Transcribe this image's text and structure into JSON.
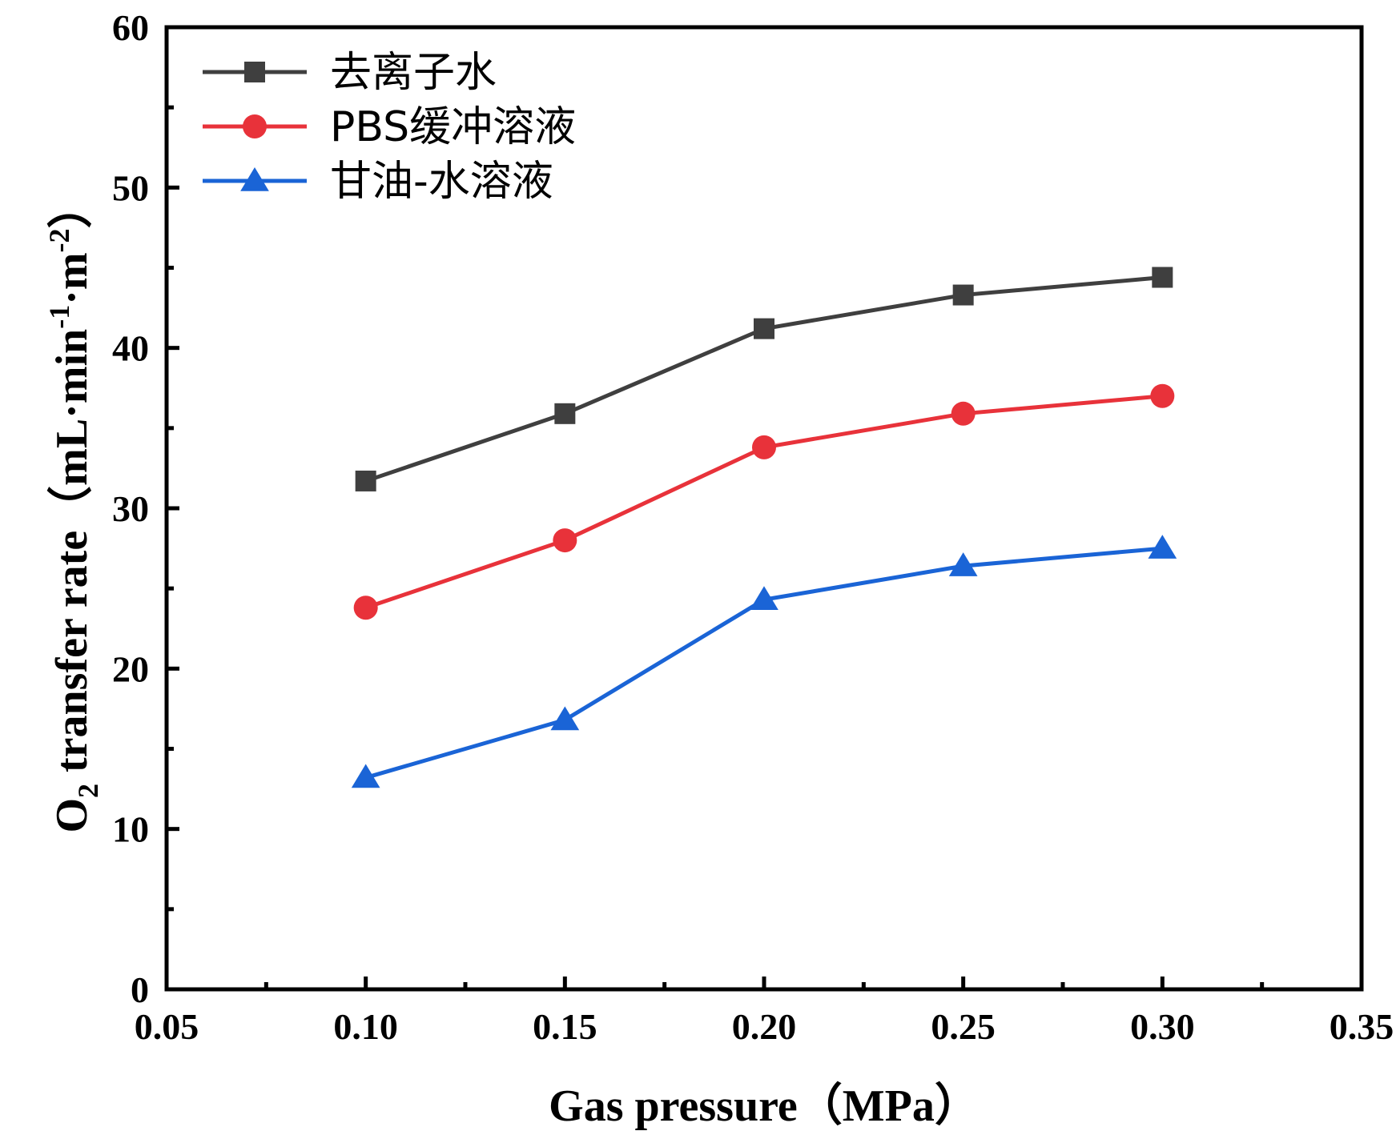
{
  "chart_data": {
    "type": "line",
    "xlabel": "Gas pressure（MPa）",
    "ylabel_main": "O",
    "ylabel_sub": "2",
    "ylabel_rest": " transfer rate（mL·min",
    "ylabel_sup1": "-1",
    "ylabel_mid": "·m",
    "ylabel_sup2": "-2",
    "ylabel_end": "）",
    "xlim": [
      0.05,
      0.35
    ],
    "ylim": [
      0,
      60
    ],
    "x_ticks": [
      "0.05",
      "0.10",
      "0.15",
      "0.20",
      "0.25",
      "0.30",
      "0.35"
    ],
    "y_ticks": [
      "0",
      "10",
      "20",
      "30",
      "40",
      "50",
      "60"
    ],
    "grid": false,
    "legend_position": "top-left",
    "x": [
      0.1,
      0.15,
      0.2,
      0.25,
      0.3
    ],
    "series": [
      {
        "name": "去离子水",
        "marker": "square",
        "color": "#3f3f3f",
        "values": [
          31.7,
          35.9,
          41.2,
          43.3,
          44.4
        ]
      },
      {
        "name": "PBS缓冲溶液",
        "marker": "circle",
        "color": "#e8323a",
        "values": [
          23.8,
          28.0,
          33.8,
          35.9,
          37.0
        ]
      },
      {
        "name": "甘油-水溶液",
        "marker": "triangle",
        "color": "#1a64d6",
        "values": [
          13.2,
          16.8,
          24.3,
          26.4,
          27.5
        ]
      }
    ]
  }
}
